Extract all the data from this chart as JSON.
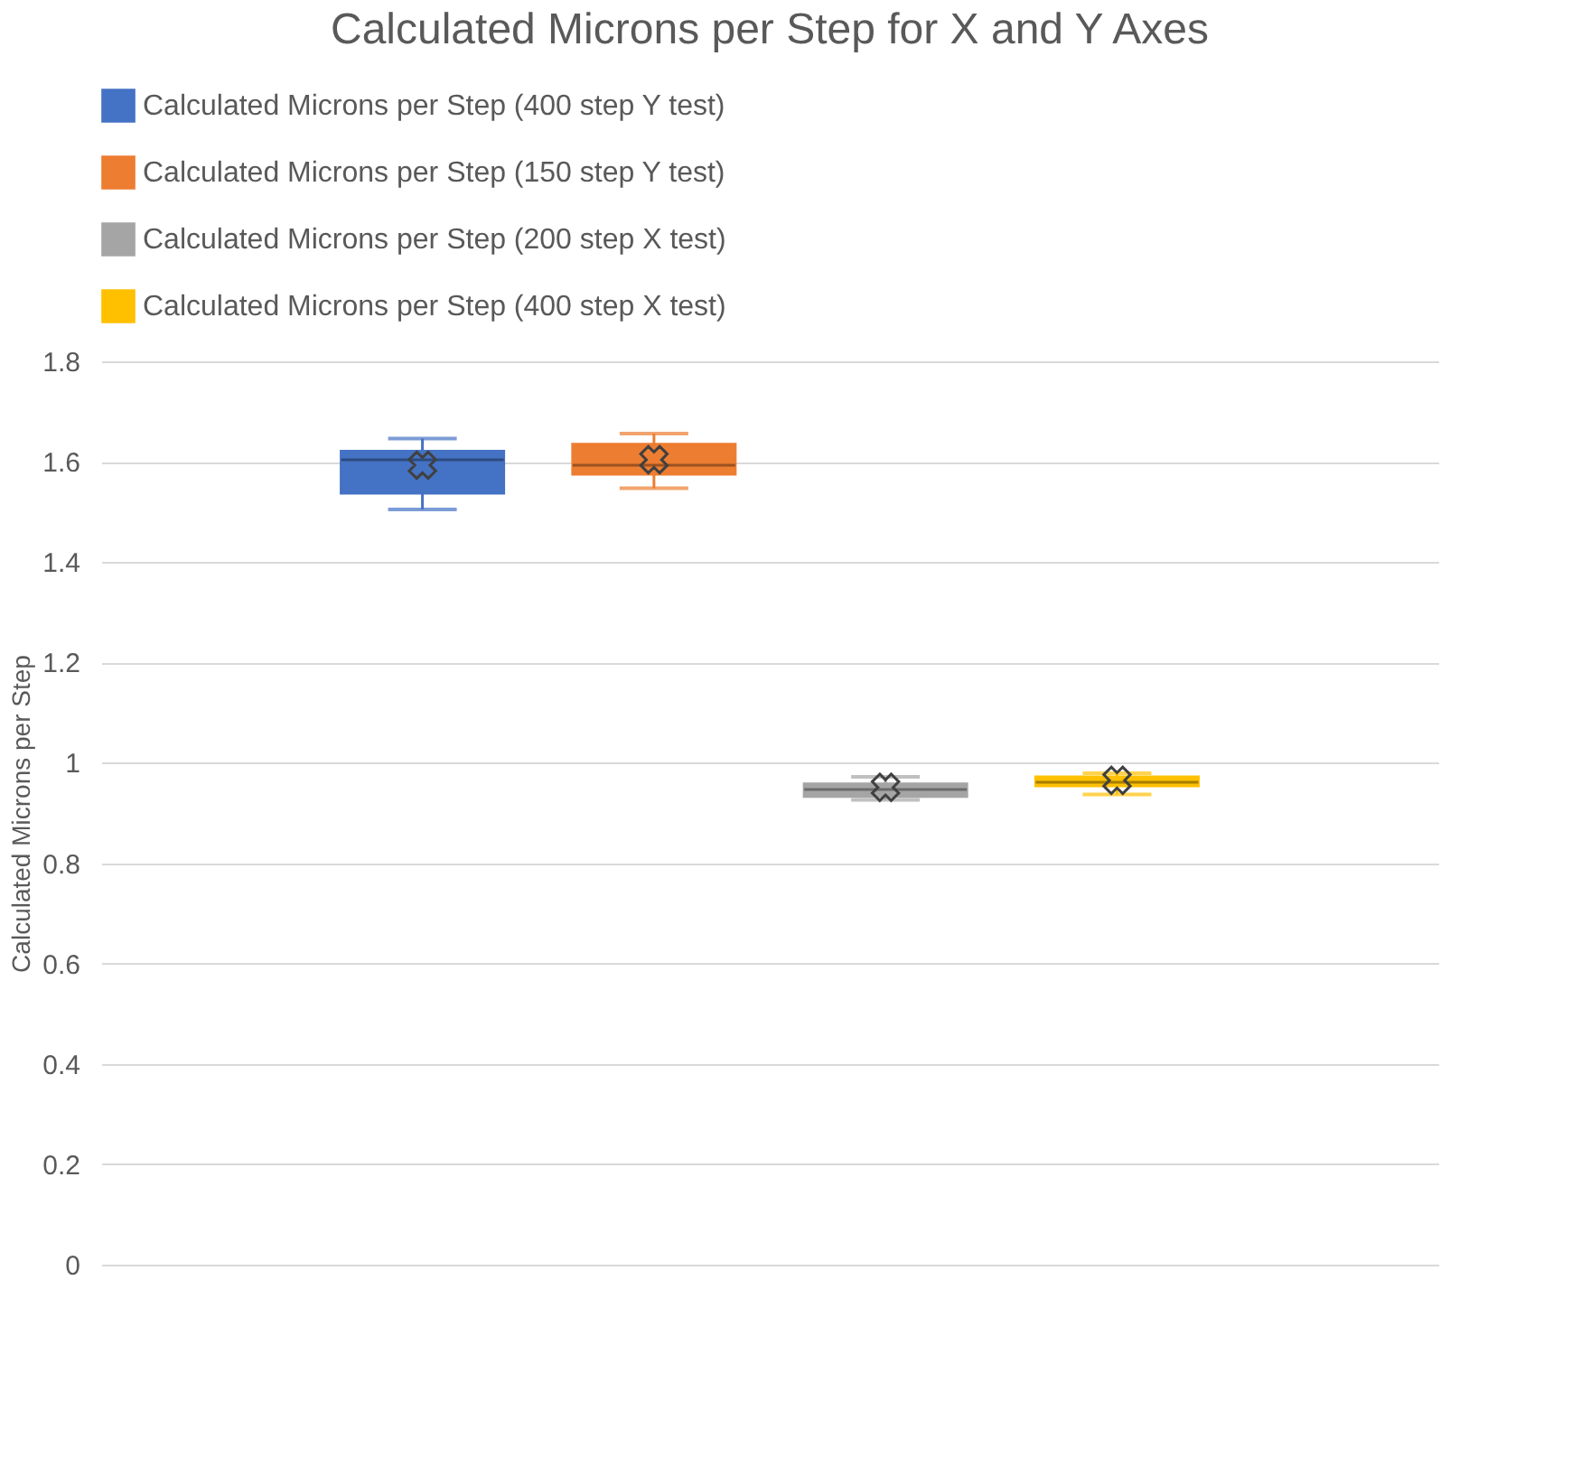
{
  "chart_data": {
    "type": "box",
    "title": "Calculated Microns per Step for X and Y Axes",
    "ylabel": "Calculated Microns per Step",
    "categories": [
      null
    ],
    "series": [
      {
        "name": "Calculated Microns per Step (400 step Y test)",
        "color": "#4472c4",
        "boxes": [
          {
            "low": 1.505,
            "q1": 1.537,
            "median": 1.604,
            "q3": 1.621,
            "high": 1.646,
            "mean": 1.593
          }
        ]
      },
      {
        "name": "Calculated Microns per Step (150 step Y test)",
        "color": "#ed7d31",
        "boxes": [
          {
            "low": 1.547,
            "q1": 1.575,
            "median": 1.593,
            "q3": 1.635,
            "high": 1.656,
            "mean": 1.604
          }
        ]
      },
      {
        "name": "Calculated Microns per Step (200 step X test)",
        "color": "#a5a5a5",
        "boxes": [
          {
            "low": 0.926,
            "q1": 0.933,
            "median": 0.947,
            "q3": 0.958,
            "high": 0.972,
            "mean": 0.951
          }
        ]
      },
      {
        "name": "Calculated Microns per Step (400 step X test)",
        "color": "#ffc000",
        "boxes": [
          {
            "low": 0.937,
            "q1": 0.954,
            "median": 0.961,
            "q3": 0.972,
            "high": 0.979,
            "mean": 0.965
          }
        ]
      }
    ],
    "ylim": [
      0,
      1.8
    ],
    "yticks": [
      0,
      0.2,
      0.4,
      0.6,
      0.8,
      1,
      1.2,
      1.4,
      1.6,
      1.8
    ],
    "grid": "y",
    "legend": "top",
    "tick_labels": "y"
  }
}
